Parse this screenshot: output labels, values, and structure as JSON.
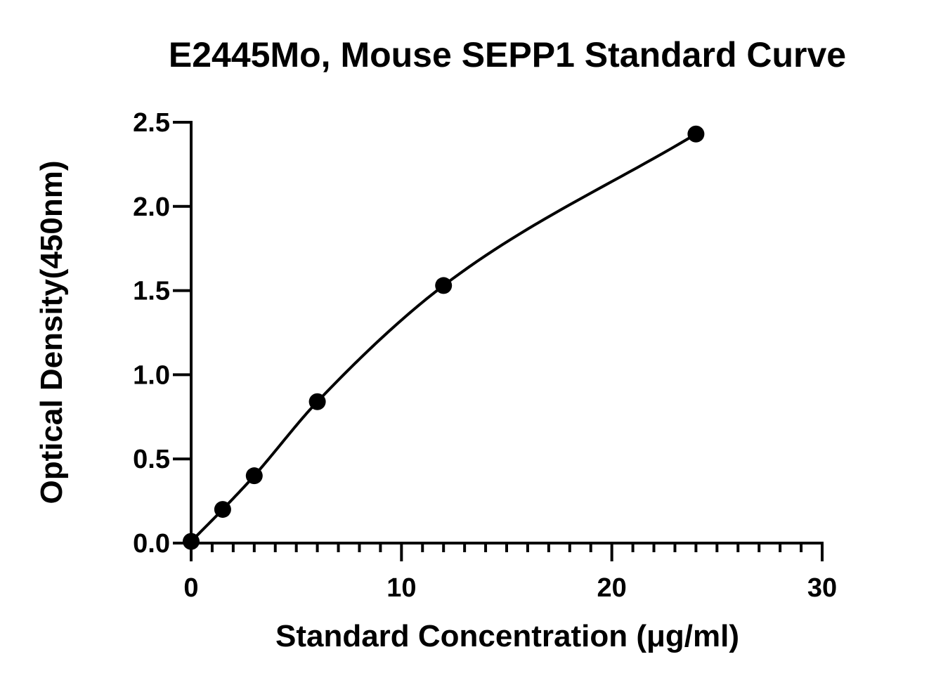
{
  "chart_data": {
    "type": "scatter",
    "title": "E2445Mo, Mouse SEPP1 Standard Curve",
    "xlabel": "Standard Concentration (μg/ml)",
    "ylabel": "Optical Density(450nm)",
    "xlim": [
      0,
      30
    ],
    "ylim": [
      0,
      2.5
    ],
    "x_ticks": [
      "0",
      "10",
      "20",
      "30"
    ],
    "y_ticks": [
      "0.0",
      "0.5",
      "1.0",
      "1.5",
      "2.0",
      "2.5"
    ],
    "x_minor_step": 1,
    "grid": false,
    "legend": "none",
    "fit_line": true,
    "series": [
      {
        "x": [
          0,
          1.5,
          3,
          6,
          12,
          24
        ],
        "y": [
          0.01,
          0.2,
          0.4,
          0.84,
          1.53,
          2.43
        ]
      }
    ],
    "colors": {
      "marker": "#000000",
      "line": "#000000"
    }
  }
}
